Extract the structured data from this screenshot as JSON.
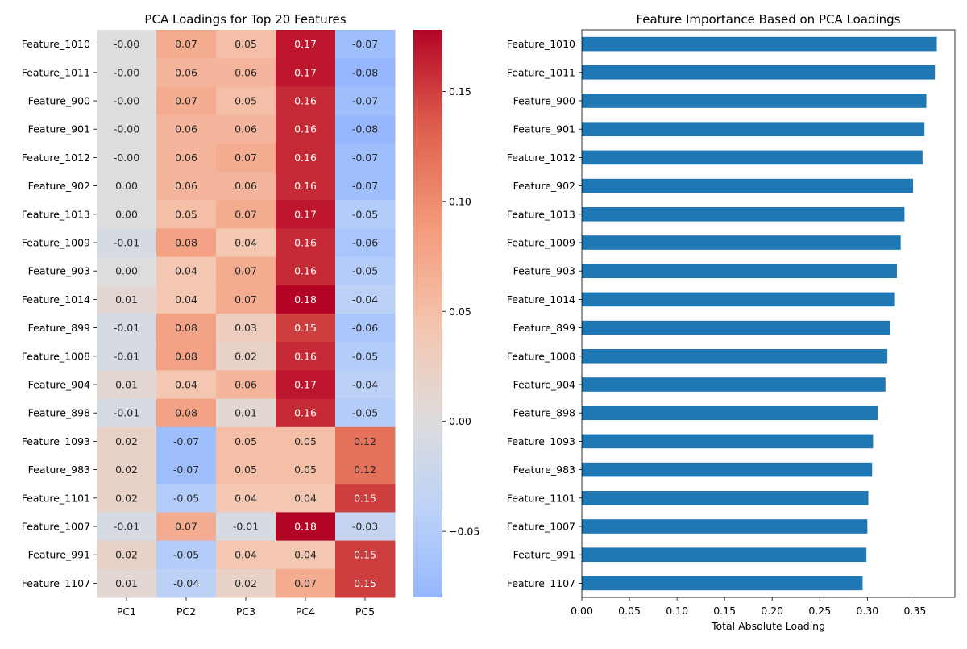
{
  "chart_data": [
    {
      "type": "heatmap",
      "title": "PCA Loadings for Top 20 Features",
      "rows": [
        "Feature_1010",
        "Feature_1011",
        "Feature_900",
        "Feature_901",
        "Feature_1012",
        "Feature_902",
        "Feature_1013",
        "Feature_1009",
        "Feature_903",
        "Feature_1014",
        "Feature_899",
        "Feature_1008",
        "Feature_904",
        "Feature_898",
        "Feature_1093",
        "Feature_983",
        "Feature_1101",
        "Feature_1007",
        "Feature_991",
        "Feature_1107"
      ],
      "columns": [
        "PC1",
        "PC2",
        "PC3",
        "PC4",
        "PC5"
      ],
      "values": [
        [
          -0.0,
          0.07,
          0.05,
          0.17,
          -0.07
        ],
        [
          -0.0,
          0.06,
          0.06,
          0.17,
          -0.08
        ],
        [
          -0.0,
          0.07,
          0.05,
          0.16,
          -0.07
        ],
        [
          -0.0,
          0.06,
          0.06,
          0.16,
          -0.08
        ],
        [
          -0.0,
          0.06,
          0.07,
          0.16,
          -0.07
        ],
        [
          0.0,
          0.06,
          0.06,
          0.16,
          -0.07
        ],
        [
          0.0,
          0.05,
          0.07,
          0.17,
          -0.05
        ],
        [
          -0.01,
          0.08,
          0.04,
          0.16,
          -0.06
        ],
        [
          0.0,
          0.04,
          0.07,
          0.16,
          -0.05
        ],
        [
          0.01,
          0.04,
          0.07,
          0.18,
          -0.04
        ],
        [
          -0.01,
          0.08,
          0.03,
          0.15,
          -0.06
        ],
        [
          -0.01,
          0.08,
          0.02,
          0.16,
          -0.05
        ],
        [
          0.01,
          0.04,
          0.06,
          0.17,
          -0.04
        ],
        [
          -0.01,
          0.08,
          0.01,
          0.16,
          -0.05
        ],
        [
          0.02,
          -0.07,
          0.05,
          0.05,
          0.12
        ],
        [
          0.02,
          -0.07,
          0.05,
          0.05,
          0.12
        ],
        [
          0.02,
          -0.05,
          0.04,
          0.04,
          0.15
        ],
        [
          -0.01,
          0.07,
          -0.01,
          0.18,
          -0.03
        ],
        [
          0.02,
          -0.05,
          0.04,
          0.04,
          0.15
        ],
        [
          0.01,
          -0.04,
          0.02,
          0.07,
          0.15
        ]
      ],
      "value_labels": [
        [
          "-0.00",
          "0.07",
          "0.05",
          "0.17",
          "-0.07"
        ],
        [
          "-0.00",
          "0.06",
          "0.06",
          "0.17",
          "-0.08"
        ],
        [
          "-0.00",
          "0.07",
          "0.05",
          "0.16",
          "-0.07"
        ],
        [
          "-0.00",
          "0.06",
          "0.06",
          "0.16",
          "-0.08"
        ],
        [
          "-0.00",
          "0.06",
          "0.07",
          "0.16",
          "-0.07"
        ],
        [
          "0.00",
          "0.06",
          "0.06",
          "0.16",
          "-0.07"
        ],
        [
          "0.00",
          "0.05",
          "0.07",
          "0.17",
          "-0.05"
        ],
        [
          "-0.01",
          "0.08",
          "0.04",
          "0.16",
          "-0.06"
        ],
        [
          "0.00",
          "0.04",
          "0.07",
          "0.16",
          "-0.05"
        ],
        [
          "0.01",
          "0.04",
          "0.07",
          "0.18",
          "-0.04"
        ],
        [
          "-0.01",
          "0.08",
          "0.03",
          "0.15",
          "-0.06"
        ],
        [
          "-0.01",
          "0.08",
          "0.02",
          "0.16",
          "-0.05"
        ],
        [
          "0.01",
          "0.04",
          "0.06",
          "0.17",
          "-0.04"
        ],
        [
          "-0.01",
          "0.08",
          "0.01",
          "0.16",
          "-0.05"
        ],
        [
          "0.02",
          "-0.07",
          "0.05",
          "0.05",
          "0.12"
        ],
        [
          "0.02",
          "-0.07",
          "0.05",
          "0.05",
          "0.12"
        ],
        [
          "0.02",
          "-0.05",
          "0.04",
          "0.04",
          "0.15"
        ],
        [
          "-0.01",
          "0.07",
          "-0.01",
          "0.18",
          "-0.03"
        ],
        [
          "0.02",
          "-0.05",
          "0.04",
          "0.04",
          "0.15"
        ],
        [
          "0.01",
          "-0.04",
          "0.02",
          "0.07",
          "0.15"
        ]
      ],
      "colormap": "coolwarm",
      "center": 0,
      "vmin": -0.08,
      "vmax": 0.178,
      "colorbar_ticks": [
        -0.05,
        0.0,
        0.05,
        0.1,
        0.15
      ],
      "colorbar_tick_labels": [
        "−0.05",
        "0.00",
        "0.05",
        "0.10",
        "0.15"
      ]
    },
    {
      "type": "bar",
      "orientation": "horizontal",
      "title": "Feature Importance Based on PCA Loadings",
      "categories": [
        "Feature_1010",
        "Feature_1011",
        "Feature_900",
        "Feature_901",
        "Feature_1012",
        "Feature_902",
        "Feature_1013",
        "Feature_1009",
        "Feature_903",
        "Feature_1014",
        "Feature_899",
        "Feature_1008",
        "Feature_904",
        "Feature_898",
        "Feature_1093",
        "Feature_983",
        "Feature_1101",
        "Feature_1007",
        "Feature_991",
        "Feature_1107"
      ],
      "values": [
        0.373,
        0.371,
        0.362,
        0.36,
        0.358,
        0.348,
        0.339,
        0.335,
        0.331,
        0.329,
        0.324,
        0.321,
        0.319,
        0.311,
        0.306,
        0.305,
        0.301,
        0.3,
        0.299,
        0.295
      ],
      "xlabel": "Total Absolute Loading",
      "ylabel": "",
      "xlim": [
        0,
        0.392
      ],
      "xticks": [
        0.0,
        0.05,
        0.1,
        0.15,
        0.2,
        0.25,
        0.3,
        0.35
      ],
      "xtick_labels": [
        "0.00",
        "0.05",
        "0.10",
        "0.15",
        "0.20",
        "0.25",
        "0.30",
        "0.35"
      ],
      "color": "#1f77b4",
      "grid": false
    }
  ]
}
